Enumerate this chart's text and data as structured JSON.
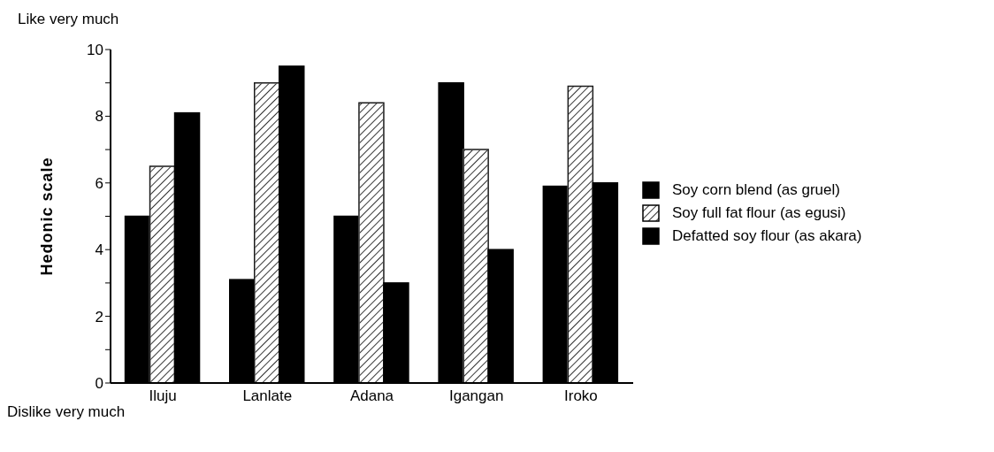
{
  "chart_data": {
    "type": "bar",
    "ylabel": "Hedonic scale",
    "annotations": [
      "Like very much",
      "Dislike very much"
    ],
    "categories": [
      "Iluju",
      "Lanlate",
      "Adana",
      "Igangan",
      "Iroko"
    ],
    "series": [
      {
        "name": "Soy corn blend (as gruel)",
        "color": "#000000",
        "values": [
          5.0,
          3.1,
          5.0,
          9.0,
          5.9
        ]
      },
      {
        "name": "Soy full fat flour (as egusi)",
        "color": "#ffffff",
        "values": [
          6.5,
          9.0,
          8.4,
          7.0,
          8.9
        ]
      },
      {
        "name": "Defatted soy flour (as akara)",
        "color": "#000000",
        "values": [
          8.1,
          9.5,
          3.0,
          4.0,
          6.0
        ]
      }
    ],
    "ylim": [
      0,
      10
    ],
    "yticks": [
      0,
      {
        "value": 1,
        "label": null
      },
      2,
      {
        "value": 3,
        "label": null
      },
      4,
      {
        "value": 5,
        "label": null
      },
      6,
      {
        "value": 7,
        "label": null
      },
      8,
      {
        "value": 9,
        "label": null
      },
      10
    ],
    "grid": false,
    "legend": "right"
  }
}
